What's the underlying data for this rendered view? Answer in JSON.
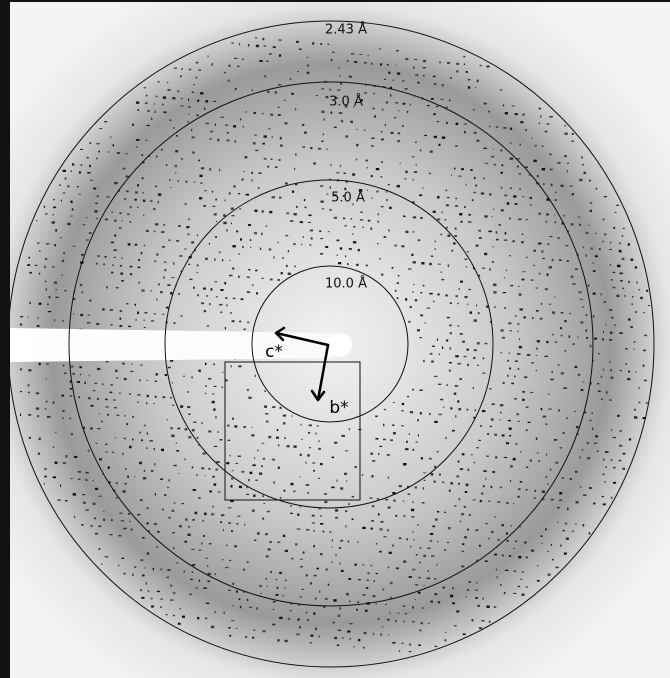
{
  "resolution_rings": [
    {
      "label": "2.43 Å"
    },
    {
      "label": "3.0 Å"
    },
    {
      "label": "5.0 Å"
    },
    {
      "label": "10.0 Å"
    }
  ],
  "axes": [
    {
      "label": "c*"
    },
    {
      "label": "b*"
    }
  ]
}
